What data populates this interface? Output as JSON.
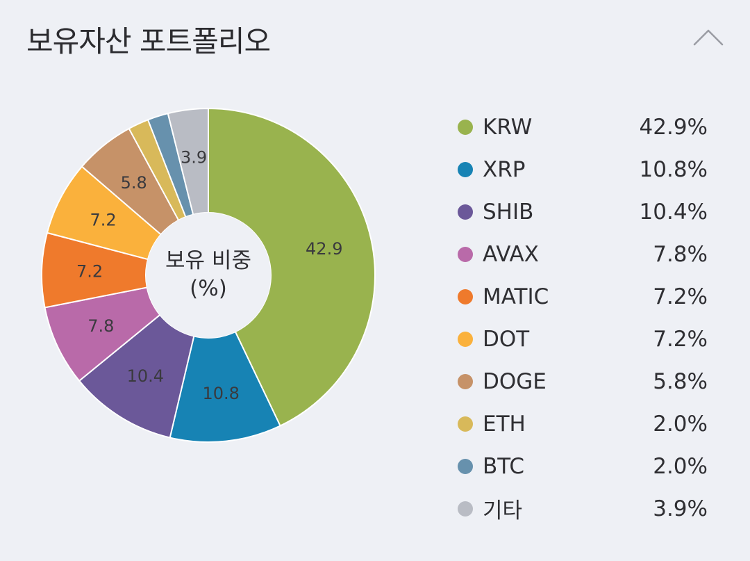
{
  "header": {
    "title": "보유자산 포트폴리오",
    "collapse_icon": "chevron-up-icon"
  },
  "chart_center_label": {
    "line1": "보유 비중",
    "line2": "(%)"
  },
  "chart_data": {
    "type": "pie",
    "donut": true,
    "unit": "%",
    "categories": [
      "KRW",
      "XRP",
      "SHIB",
      "AVAX",
      "MATIC",
      "DOT",
      "DOGE",
      "ETH",
      "BTC",
      "기타"
    ],
    "values": [
      42.9,
      10.8,
      10.4,
      7.8,
      7.2,
      7.2,
      5.8,
      2.0,
      2.0,
      3.9
    ],
    "slice_labels": [
      "42.9",
      "10.8",
      "10.4",
      "7.8",
      "7.2",
      "7.2",
      "5.8",
      "",
      "",
      "3.9"
    ],
    "colors": [
      "#99b34e",
      "#1783b4",
      "#6b5899",
      "#b96aa9",
      "#ef7a2c",
      "#fab13c",
      "#c69268",
      "#d8b95a",
      "#6791ad",
      "#b9bcc4"
    ],
    "legend_position": "right"
  },
  "legend": {
    "items": [
      {
        "name": "KRW",
        "pct": "42.9%",
        "color": "#99b34e"
      },
      {
        "name": "XRP",
        "pct": "10.8%",
        "color": "#1783b4"
      },
      {
        "name": "SHIB",
        "pct": "10.4%",
        "color": "#6b5899"
      },
      {
        "name": "AVAX",
        "pct": "7.8%",
        "color": "#b96aa9"
      },
      {
        "name": "MATIC",
        "pct": "7.2%",
        "color": "#ef7a2c"
      },
      {
        "name": "DOT",
        "pct": "7.2%",
        "color": "#fab13c"
      },
      {
        "name": "DOGE",
        "pct": "5.8%",
        "color": "#c69268"
      },
      {
        "name": "ETH",
        "pct": "2.0%",
        "color": "#d8b95a"
      },
      {
        "name": "BTC",
        "pct": "2.0%",
        "color": "#6791ad"
      },
      {
        "name": "기타",
        "pct": "3.9%",
        "color": "#b9bcc4"
      }
    ]
  }
}
